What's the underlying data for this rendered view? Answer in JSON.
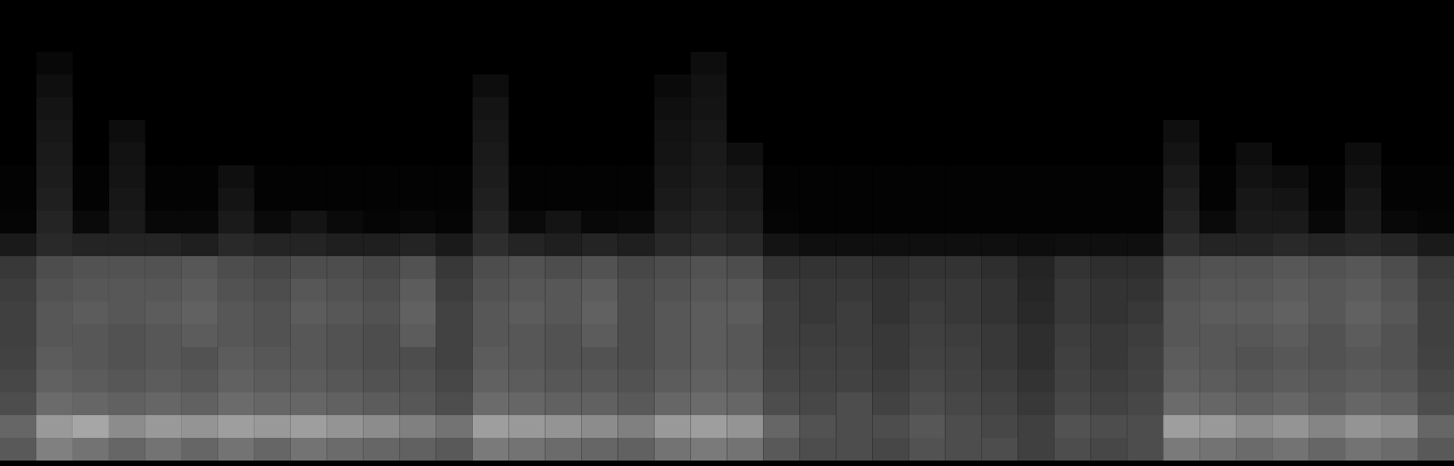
{
  "chart_data": {
    "type": "heatmap",
    "tick_labels": false,
    "zlim": [
      0,
      100
    ],
    "cells": [
      [
        0,
        0,
        0,
        0,
        0,
        0,
        0,
        0,
        0,
        0,
        0,
        0,
        0,
        0,
        0,
        0,
        0,
        0,
        0,
        0,
        0,
        0,
        0,
        0,
        0,
        0,
        0,
        0,
        0,
        0,
        0,
        0,
        0,
        0,
        0,
        0,
        0,
        0,
        0,
        0
      ],
      [
        0,
        0,
        0,
        0,
        0,
        0,
        0,
        0,
        0,
        0,
        0,
        0,
        0,
        0,
        0,
        0,
        0,
        0,
        0,
        0,
        0,
        0,
        0,
        0,
        0,
        0,
        0,
        0,
        0,
        0,
        0,
        0,
        0,
        0,
        0,
        0,
        0,
        0,
        0,
        0
      ],
      [
        0,
        3,
        0,
        0,
        0,
        0,
        0,
        0,
        0,
        0,
        0,
        0,
        0,
        0,
        0,
        0,
        0,
        0,
        0,
        5,
        0,
        0,
        0,
        0,
        0,
        0,
        0,
        0,
        0,
        0,
        0,
        0,
        0,
        0,
        0,
        0,
        0,
        0,
        0,
        0
      ],
      [
        0,
        6,
        0,
        0,
        0,
        0,
        0,
        0,
        0,
        0,
        0,
        0,
        0,
        5,
        0,
        0,
        0,
        0,
        4,
        7,
        0,
        0,
        0,
        0,
        0,
        0,
        0,
        0,
        0,
        0,
        0,
        0,
        0,
        0,
        0,
        0,
        0,
        0,
        0,
        0
      ],
      [
        0,
        8,
        0,
        0,
        0,
        0,
        0,
        0,
        0,
        0,
        0,
        0,
        0,
        8,
        0,
        0,
        0,
        0,
        6,
        8,
        0,
        0,
        0,
        0,
        0,
        0,
        0,
        0,
        0,
        0,
        0,
        0,
        0,
        0,
        0,
        0,
        0,
        0,
        0,
        0
      ],
      [
        0,
        9,
        0,
        5,
        0,
        0,
        0,
        0,
        0,
        0,
        0,
        0,
        0,
        9,
        0,
        0,
        0,
        0,
        7,
        9,
        0,
        0,
        0,
        0,
        0,
        0,
        0,
        0,
        0,
        0,
        0,
        0,
        6,
        0,
        0,
        0,
        0,
        0,
        0,
        0
      ],
      [
        0,
        10,
        0,
        7,
        0,
        0,
        0,
        0,
        0,
        0,
        0,
        0,
        0,
        10,
        0,
        0,
        0,
        0,
        8,
        10,
        6,
        0,
        0,
        0,
        0,
        0,
        0,
        0,
        0,
        0,
        0,
        0,
        8,
        0,
        5,
        0,
        0,
        5,
        0,
        0
      ],
      [
        1,
        11,
        1,
        8,
        1,
        1,
        6,
        1,
        1,
        1,
        1,
        1,
        1,
        11,
        1,
        1,
        1,
        1,
        9,
        11,
        9,
        1,
        1,
        1,
        1,
        1,
        1,
        1,
        1,
        1,
        1,
        1,
        10,
        1,
        7,
        5,
        1,
        7,
        1,
        1
      ],
      [
        1,
        12,
        1,
        9,
        1,
        1,
        8,
        1,
        1,
        1,
        1,
        1,
        1,
        12,
        1,
        1,
        1,
        1,
        10,
        12,
        10,
        1,
        1,
        1,
        1,
        1,
        1,
        1,
        1,
        1,
        1,
        1,
        12,
        1,
        9,
        8,
        1,
        9,
        1,
        1
      ],
      [
        2,
        14,
        4,
        10,
        3,
        3,
        10,
        4,
        8,
        4,
        2,
        3,
        2,
        14,
        4,
        8,
        3,
        4,
        12,
        14,
        12,
        2,
        1,
        1,
        1,
        1,
        1,
        1,
        1,
        1,
        1,
        1,
        14,
        4,
        10,
        10,
        3,
        10,
        3,
        2
      ],
      [
        10,
        16,
        14,
        14,
        14,
        12,
        16,
        14,
        14,
        12,
        12,
        14,
        10,
        18,
        14,
        12,
        14,
        12,
        16,
        18,
        16,
        8,
        6,
        6,
        6,
        6,
        6,
        6,
        5,
        6,
        6,
        6,
        18,
        14,
        14,
        16,
        14,
        16,
        14,
        10
      ],
      [
        22,
        30,
        32,
        32,
        32,
        34,
        30,
        28,
        30,
        30,
        28,
        32,
        22,
        30,
        32,
        30,
        32,
        28,
        30,
        32,
        30,
        20,
        20,
        20,
        18,
        20,
        20,
        18,
        14,
        20,
        18,
        18,
        30,
        32,
        32,
        34,
        32,
        34,
        30,
        22
      ],
      [
        24,
        32,
        34,
        34,
        34,
        36,
        32,
        30,
        34,
        32,
        30,
        36,
        24,
        32,
        34,
        34,
        36,
        30,
        32,
        34,
        34,
        24,
        22,
        22,
        20,
        22,
        22,
        20,
        15,
        22,
        20,
        20,
        32,
        34,
        34,
        36,
        34,
        36,
        32,
        24
      ],
      [
        25,
        34,
        36,
        34,
        36,
        38,
        34,
        32,
        36,
        34,
        32,
        38,
        26,
        34,
        36,
        34,
        38,
        30,
        34,
        36,
        36,
        25,
        22,
        24,
        20,
        24,
        22,
        20,
        16,
        22,
        20,
        22,
        34,
        36,
        36,
        38,
        34,
        38,
        34,
        25
      ],
      [
        25,
        34,
        34,
        32,
        34,
        36,
        34,
        32,
        34,
        32,
        30,
        36,
        26,
        34,
        34,
        32,
        36,
        30,
        34,
        36,
        34,
        25,
        24,
        24,
        22,
        25,
        24,
        22,
        18,
        24,
        22,
        24,
        34,
        34,
        34,
        36,
        32,
        36,
        32,
        25
      ],
      [
        26,
        36,
        34,
        32,
        34,
        32,
        36,
        34,
        34,
        32,
        30,
        30,
        26,
        36,
        34,
        32,
        32,
        30,
        34,
        36,
        34,
        26,
        25,
        25,
        22,
        26,
        25,
        22,
        18,
        25,
        22,
        25,
        36,
        34,
        32,
        34,
        32,
        34,
        32,
        26
      ],
      [
        28,
        38,
        36,
        34,
        36,
        34,
        38,
        36,
        36,
        34,
        32,
        32,
        28,
        38,
        36,
        34,
        34,
        32,
        36,
        38,
        36,
        28,
        26,
        26,
        24,
        28,
        26,
        24,
        20,
        26,
        24,
        26,
        38,
        36,
        34,
        36,
        34,
        36,
        34,
        28
      ],
      [
        30,
        42,
        40,
        38,
        40,
        38,
        42,
        40,
        40,
        38,
        36,
        34,
        30,
        42,
        40,
        38,
        38,
        35,
        40,
        42,
        40,
        30,
        28,
        30,
        26,
        30,
        28,
        26,
        22,
        28,
        26,
        28,
        42,
        40,
        38,
        40,
        36,
        40,
        38,
        30
      ],
      [
        40,
        60,
        65,
        55,
        60,
        58,
        62,
        60,
        62,
        58,
        55,
        50,
        45,
        62,
        60,
        58,
        55,
        50,
        60,
        62,
        58,
        40,
        32,
        30,
        30,
        34,
        30,
        28,
        25,
        32,
        30,
        30,
        62,
        60,
        55,
        58,
        52,
        58,
        55,
        40
      ],
      [
        35,
        50,
        45,
        40,
        45,
        40,
        45,
        40,
        45,
        42,
        40,
        38,
        35,
        48,
        45,
        42,
        40,
        38,
        45,
        48,
        45,
        35,
        30,
        30,
        28,
        32,
        30,
        30,
        25,
        30,
        28,
        30,
        48,
        45,
        42,
        45,
        40,
        45,
        42,
        35
      ]
    ]
  }
}
